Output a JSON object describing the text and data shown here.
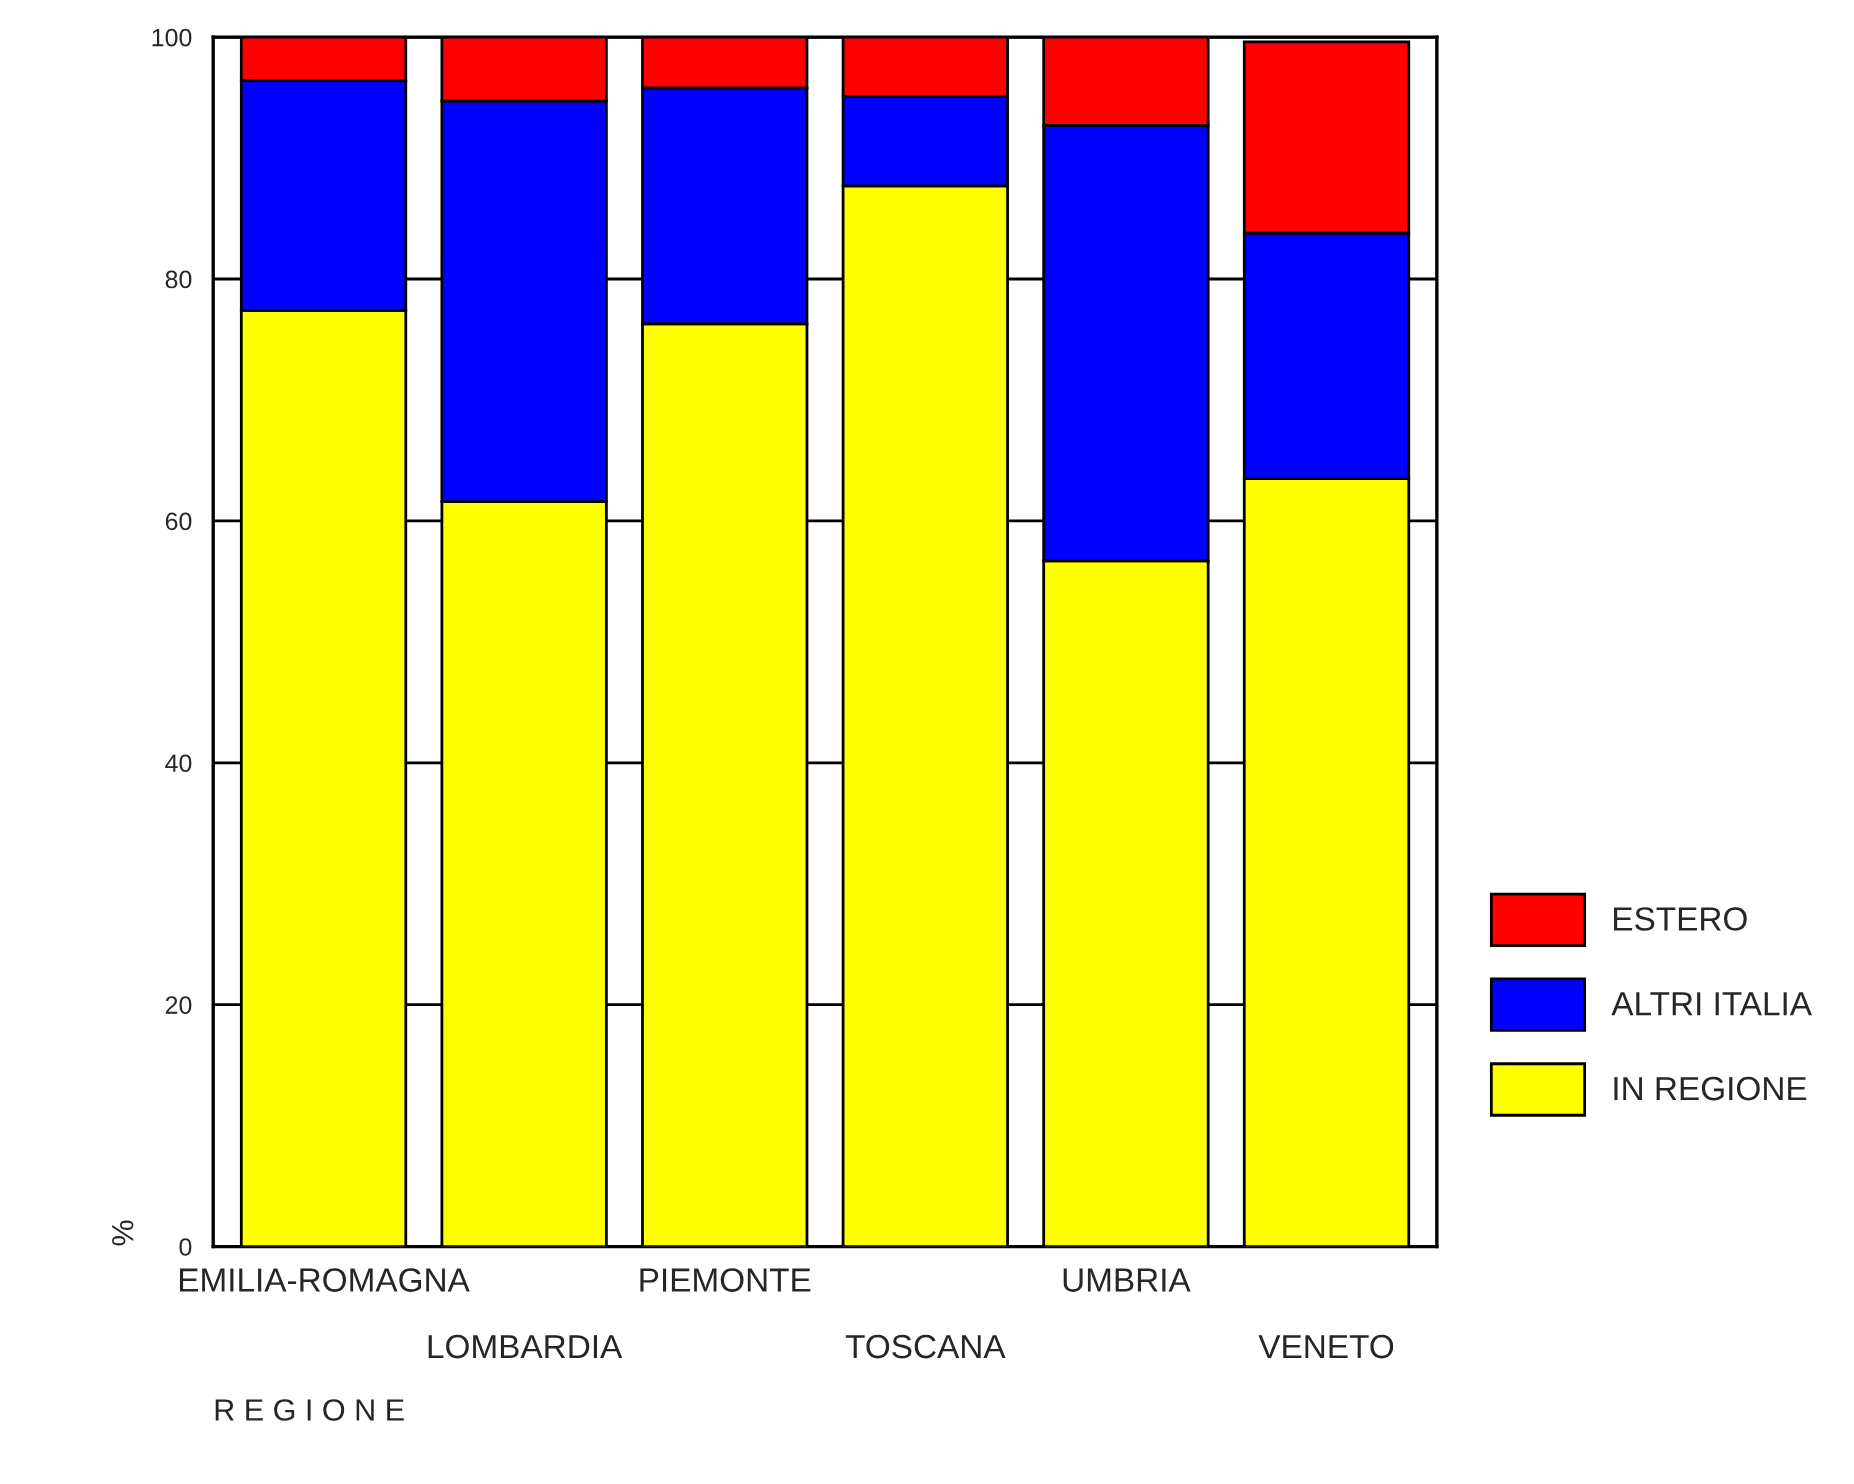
{
  "chart_data": {
    "type": "bar",
    "stacked": true,
    "xlabel": "R E G I O N E",
    "ylabel": "%",
    "categories": [
      "EMILIA-ROMAGNA",
      "LOMBARDIA",
      "PIEMONTE",
      "TOSCANA",
      "UMBRIA",
      "VENETO"
    ],
    "series": [
      {
        "name": "IN REGIONE",
        "color": "#ffff00",
        "values": [
          77.4,
          61.6,
          76.3,
          87.7,
          56.7,
          63.5
        ]
      },
      {
        "name": "ALTRI ITALIA",
        "color": "#0000ff",
        "values": [
          19.0,
          33.1,
          19.5,
          7.4,
          36.0,
          20.3
        ]
      },
      {
        "name": "ESTERO",
        "color": "#ff0000",
        "values": [
          3.6,
          5.3,
          4.2,
          4.9,
          7.3,
          15.8
        ]
      }
    ],
    "ylim": [
      0,
      100
    ],
    "yticks": [
      0,
      20,
      40,
      60,
      80,
      100
    ],
    "grid": "y",
    "legend": "right"
  }
}
